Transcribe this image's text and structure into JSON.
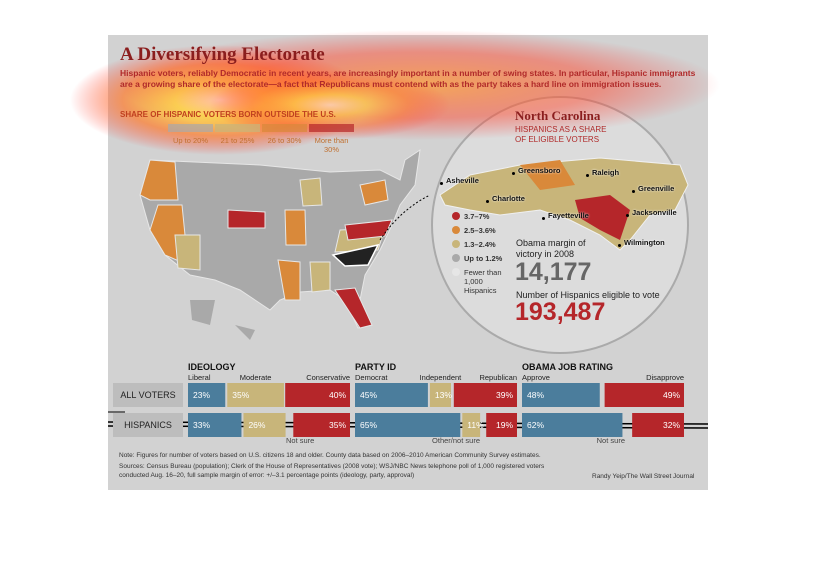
{
  "header": {
    "title": "A Diversifying Electorate",
    "subtitle": "Hispanic voters, reliably Democratic in recent years, are increasingly important in a number of swing states. In particular, Hispanic immigrants are a growing share of the electorate—a fact that Republicans must contend with as the party takes a hard line on immigration issues."
  },
  "map_legend": {
    "title": "SHARE OF HISPANIC VOTERS BORN OUTSIDE THE U.S.",
    "items": [
      "Up to 20%",
      "21 to 25%",
      "26 to 30%",
      "More than 30%"
    ],
    "colors": [
      "#a9a9a9",
      "#c8b57a",
      "#d9893a",
      "#b5262a"
    ]
  },
  "inset": {
    "title": "North Carolina",
    "subtitle": "HISPANICS AS A SHARE OF ELIGIBLE VOTERS",
    "cities": [
      "Asheville",
      "Greensboro",
      "Raleigh",
      "Greenville",
      "Charlotte",
      "Fayetteville",
      "Jacksonville",
      "Wilmington"
    ],
    "legend": [
      "3.7–7%",
      "2.5–3.6%",
      "1.3–2.4%",
      "Up to 1.2%",
      "Fewer than 1,000 Hispanics"
    ],
    "legend_colors": [
      "#b5262a",
      "#d9893a",
      "#c8b57a",
      "#a9a9a9",
      "#e6e6e6"
    ],
    "margin_label": "Obama margin of victory in 2008",
    "margin_value": "14,177",
    "eligible_label": "Number of Hispanics eligible to vote",
    "eligible_value": "193,487"
  },
  "row_labels": [
    "ALL VOTERS",
    "HISPANICS"
  ],
  "panels": [
    {
      "title": "IDEOLOGY",
      "labels": [
        "Liberal",
        "Moderate",
        "Conservative"
      ],
      "colors": [
        "#4b7d9c",
        "#c8b57a",
        "#b5262a"
      ],
      "rows": [
        {
          "values": [
            23,
            35,
            40
          ],
          "value_labels": [
            "23%",
            "35%",
            "40%"
          ]
        },
        {
          "values": [
            33,
            26,
            35
          ],
          "value_labels": [
            "33%",
            "26%",
            "35%"
          ]
        }
      ],
      "note": "Not sure"
    },
    {
      "title": "PARTY ID",
      "labels": [
        "Democrat",
        "Independent",
        "Republican"
      ],
      "colors": [
        "#4b7d9c",
        "#c8b57a",
        "#b5262a"
      ],
      "rows": [
        {
          "values": [
            45,
            13,
            39
          ],
          "value_labels": [
            "45%",
            "13%",
            "39%"
          ]
        },
        {
          "values": [
            65,
            11,
            19
          ],
          "value_labels": [
            "65%",
            "11%",
            "19%"
          ]
        }
      ],
      "note": "Other/not sure"
    },
    {
      "title": "OBAMA JOB RATING",
      "labels": [
        "Approve",
        "Disapprove"
      ],
      "colors": [
        "#4b7d9c",
        "#b5262a"
      ],
      "rows": [
        {
          "values": [
            48,
            49
          ],
          "value_labels": [
            "48%",
            "49%"
          ]
        },
        {
          "values": [
            62,
            32
          ],
          "value_labels": [
            "62%",
            "32%"
          ]
        }
      ],
      "note": "Not sure"
    }
  ],
  "footer": {
    "note": "Note: Figures for number of voters based on U.S. citizens 18 and older. County data based on 2006–2010 American Community Survey estimates.",
    "sources": "Sources: Census Bureau (population); Clerk of the House of Representatives (2008 vote); WSJ/NBC News telephone poll of 1,000 registered voters conducted Aug. 16–20, full sample margin of error: +/–3.1 percentage points (ideology, party, approval)",
    "credit": "Randy Yeip/The Wall Street Journal"
  }
}
